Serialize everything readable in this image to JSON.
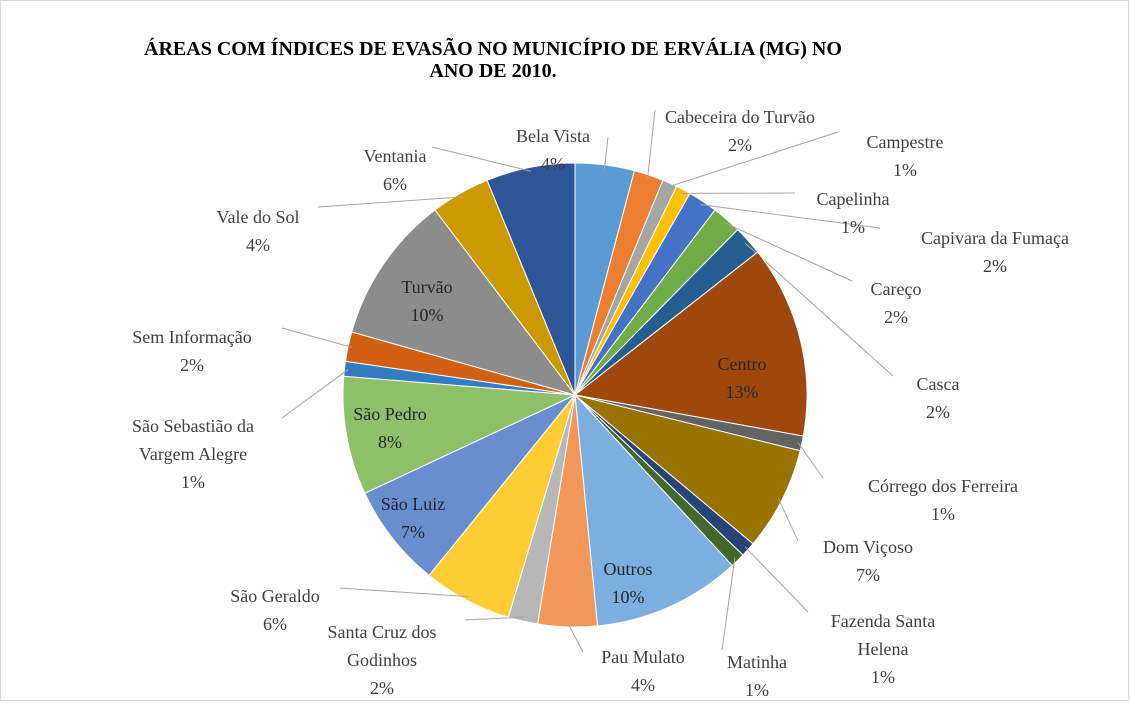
{
  "chart_data": {
    "type": "pie",
    "title": "ÁREAS COM ÍNDICES DE EVASÃO NO MUNICÍPIO DE ERVÁLIA (MG) NO ANO DE 2010.",
    "categories": [
      "Bela Vista",
      "Cabeceira do Turvão",
      "Campestre",
      "Capelinha",
      "Capivara da Fumaça",
      "Careço",
      "Casca",
      "Centro",
      "Córrego dos Ferreira",
      "Dom Viçoso",
      "Fazenda Santa Helena",
      "Matinha",
      "Outros",
      "Pau Mulato",
      "Santa Cruz dos Godinhos",
      "São Geraldo",
      "São Luiz",
      "São Pedro",
      "São Sebastião da Vargem Alegre",
      "Sem Informação",
      "Turvão",
      "Vale do Sol",
      "Ventania"
    ],
    "values": [
      4,
      2,
      1,
      1,
      2,
      2,
      2,
      13,
      1,
      7,
      1,
      1,
      10,
      4,
      2,
      6,
      7,
      8,
      1,
      2,
      10,
      4,
      6
    ],
    "value_labels": [
      "4%",
      "2%",
      "1%",
      "1%",
      "2%",
      "2%",
      "2%",
      "13%",
      "1%",
      "7%",
      "1%",
      "1%",
      "10%",
      "4%",
      "2%",
      "6%",
      "7%",
      "8%",
      "1%",
      "2%",
      "10%",
      "4%",
      "6%"
    ],
    "colors": [
      "#5b9bd5",
      "#ed7d31",
      "#a5a5a5",
      "#ffc000",
      "#4472c4",
      "#70ad47",
      "#255e91",
      "#9e480e",
      "#636363",
      "#997300",
      "#264478",
      "#43682b",
      "#7cafdd",
      "#f1975a",
      "#b7b7b7",
      "#ffcd33",
      "#698ed0",
      "#8cc168",
      "#327dc2",
      "#d26012",
      "#8c8c8c",
      "#cc9a00",
      "#2e5597"
    ]
  }
}
